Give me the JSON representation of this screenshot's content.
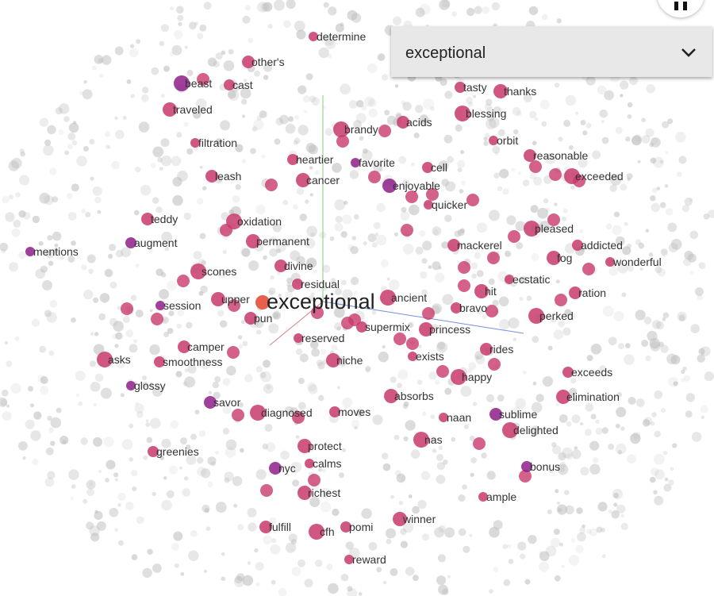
{
  "search": {
    "selected_word": "exceptional"
  },
  "focus": {
    "label": "exceptional"
  },
  "colors": {
    "background_point": "#bdbdbd",
    "neighbor_pink": "#c93a6d",
    "neighbor_purple": "#8e1f8a",
    "focus_point": "#e8604c",
    "axis_green": "#7fd07f",
    "axis_blue": "#6f8fe6",
    "axis_red": "#e07a7a"
  },
  "icons": {
    "dropdown": "chevron-down-icon",
    "top_button": "pause-icon"
  },
  "neighbors": [
    "determine",
    "other's",
    "beast",
    "cast",
    "traveled",
    "filtration",
    "leash",
    "brandy",
    "heartier",
    "cancer",
    "favorite",
    "acids",
    "blessing",
    "tasty",
    "thanks",
    "orbit",
    "reasonable",
    "exceeded",
    "cell",
    "enjoyable",
    "quicker",
    "teddy",
    "oxidation",
    "augment",
    "permanent",
    "mentions",
    "divine",
    "scones",
    "residual",
    "upper",
    "session",
    "pun",
    "ancient",
    "bravo",
    "hit",
    "ecstatic",
    "ration",
    "pleased",
    "addicted",
    "fog",
    "wonderful",
    "mackerel",
    "perked",
    "supermix",
    "princess",
    "reserved",
    "camper",
    "asks",
    "smoothness",
    "niche",
    "exists",
    "rides",
    "happy",
    "exceeds",
    "elimination",
    "glossy",
    "savor",
    "diagnosed",
    "moves",
    "absorbs",
    "naan",
    "sublime",
    "delighted",
    "greenies",
    "protect",
    "calms",
    "nyc",
    "nas",
    "bonus",
    "richest",
    "ample",
    "fulfill",
    "cfh",
    "pomi",
    "winner",
    "reward"
  ]
}
